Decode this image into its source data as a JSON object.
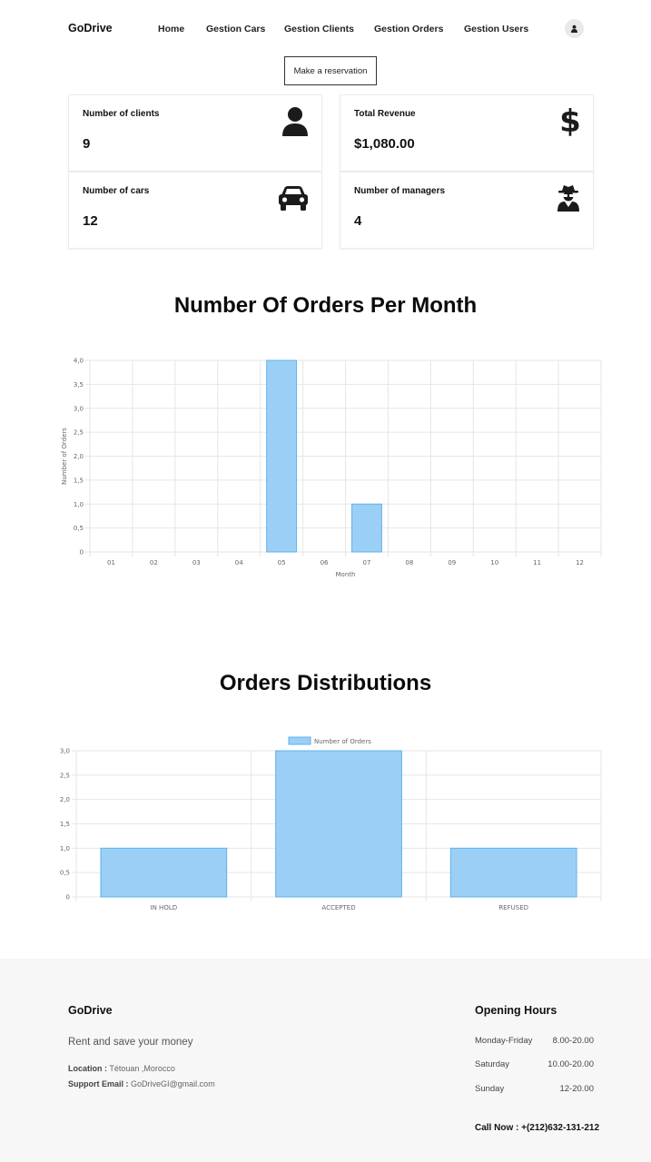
{
  "nav": {
    "brand": "GoDrive",
    "links": [
      "Home",
      "Gestion Cars",
      "Gestion Clients",
      "Gestion Orders",
      "Gestion Users"
    ]
  },
  "reserve_button": "Make a reservation",
  "stats": [
    {
      "label": "Number of clients",
      "value": "9",
      "icon": "user-icon"
    },
    {
      "label": "Total Revenue",
      "value": "$1,080.00",
      "icon": "dollar-icon"
    },
    {
      "label": "Number of cars",
      "value": "12",
      "icon": "car-icon"
    },
    {
      "label": "Number of managers",
      "value": "4",
      "icon": "user-secret-icon"
    }
  ],
  "sections": {
    "orders_per_month": "Number Of Orders Per Month",
    "orders_distribution": "Orders Distributions"
  },
  "colors": {
    "bar_fill": "#9ccff5",
    "bar_stroke": "#5fb2ee",
    "grid": "#e6e6e6"
  },
  "chart_data": [
    {
      "type": "bar",
      "categories": [
        "01",
        "02",
        "03",
        "04",
        "05",
        "06",
        "07",
        "08",
        "09",
        "10",
        "11",
        "12"
      ],
      "values": [
        0,
        0,
        0,
        0,
        4,
        0,
        1,
        0,
        0,
        0,
        0,
        0
      ],
      "title": "",
      "xlabel": "Month",
      "ylabel": "Number of Orders",
      "ylim": [
        0,
        4
      ],
      "yticks": [
        "0",
        "0,5",
        "1,0",
        "1,5",
        "2,0",
        "2,5",
        "3,0",
        "3,5",
        "4,0"
      ],
      "grid": true
    },
    {
      "type": "bar",
      "categories": [
        "IN HOLD",
        "ACCEPTED",
        "REFUSED"
      ],
      "series": [
        {
          "name": "Number of Orders",
          "values": [
            1,
            3,
            1
          ]
        }
      ],
      "title": "",
      "xlabel": "",
      "ylabel": "",
      "ylim": [
        0,
        3
      ],
      "yticks": [
        "0",
        "0,5",
        "1,0",
        "1,5",
        "2,0",
        "2,5",
        "3,0"
      ],
      "legend": "top-center",
      "grid": true
    }
  ],
  "footer": {
    "brand": "GoDrive",
    "tagline": "Rent and save your money",
    "location_label": "Location :",
    "location_value": "Tétouan ,Morocco",
    "email_label": "Support Email :",
    "email_value": "GoDriveGI@gmail.com",
    "hours_title": "Opening Hours",
    "hours": [
      {
        "day": "Monday-Friday",
        "time": "8.00-20.00"
      },
      {
        "day": "Saturday",
        "time": "10.00-20.00"
      },
      {
        "day": "Sunday",
        "time": "12-20.00"
      }
    ],
    "call_now": "Call Now : +(212)632-131-212"
  }
}
